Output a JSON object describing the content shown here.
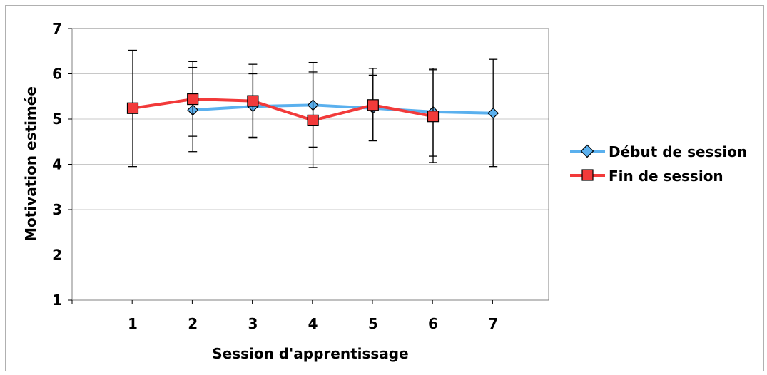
{
  "chart_data": {
    "type": "line",
    "xlabel": "Session d'apprentissage",
    "ylabel": "Motivation estimée",
    "categories": [
      "1",
      "2",
      "3",
      "4",
      "5",
      "6",
      "7"
    ],
    "y_ticks": [
      "1",
      "2",
      "3",
      "4",
      "5",
      "6",
      "7"
    ],
    "ylim": [
      1,
      7
    ],
    "grid": true,
    "legend_position": "right",
    "series": [
      {
        "name": "Début de session",
        "color": "#5ab0ee",
        "marker": "diamond",
        "values": [
          null,
          5.2,
          5.28,
          5.31,
          5.24,
          5.16,
          5.13
        ],
        "error_low": [
          null,
          4.28,
          4.58,
          4.38,
          4.52,
          4.18,
          3.95
        ],
        "error_high": [
          null,
          6.14,
          6.0,
          6.04,
          5.97,
          6.12,
          6.32
        ]
      },
      {
        "name": "Fin de session",
        "color": "#f23a3a",
        "marker": "square",
        "values": [
          5.24,
          5.44,
          5.4,
          4.97,
          5.31,
          5.06,
          null
        ],
        "error_low": [
          3.95,
          4.62,
          4.6,
          3.93,
          4.52,
          4.04,
          null
        ],
        "error_high": [
          6.52,
          6.27,
          6.21,
          6.25,
          6.12,
          6.09,
          null
        ]
      }
    ]
  }
}
